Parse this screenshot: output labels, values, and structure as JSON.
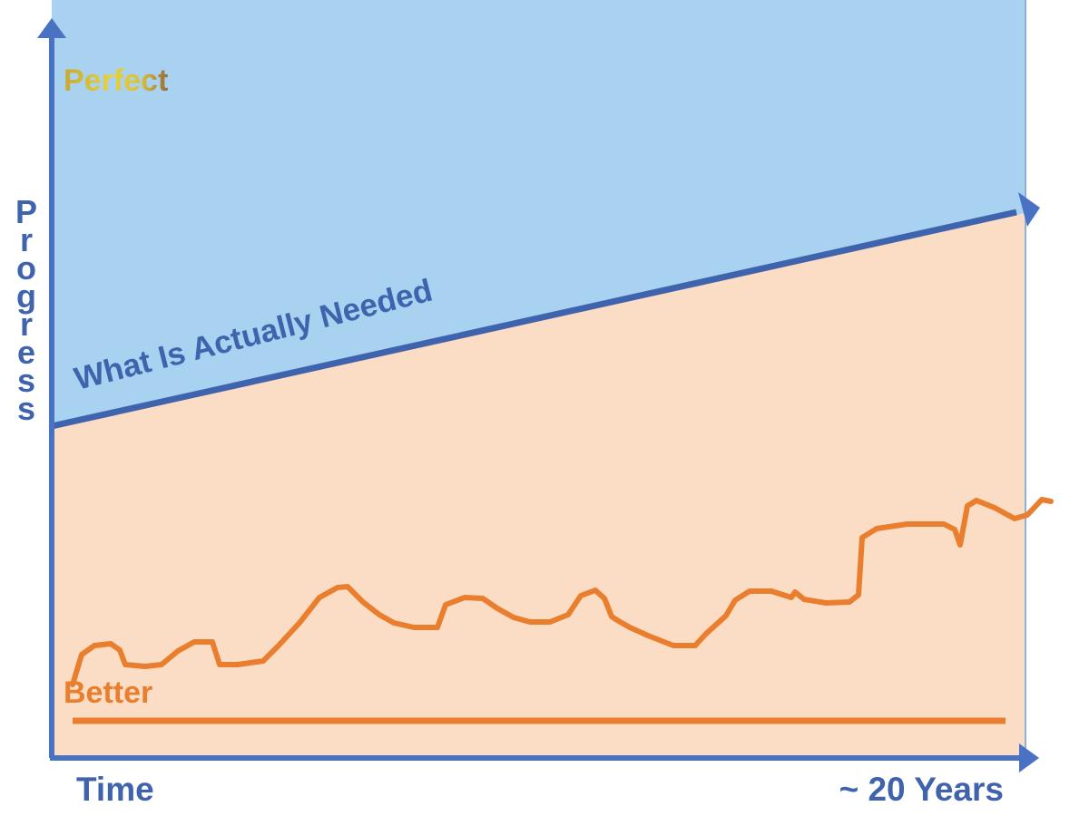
{
  "diagram": {
    "y_axis_title": "Progress",
    "x_axis_start_label": "Time",
    "x_axis_end_label": "~ 20 Years",
    "upper_region_label": "Perfect",
    "boundary_line_label": "What Is Actually Needed",
    "lower_region_label": "Better"
  },
  "colors": {
    "upper_region": "#a8d2f0",
    "lower_region": "#fbdcc4",
    "axis": "#4a72c4",
    "boundary_line": "#3f63ad",
    "progress_curve": "#e97f2e",
    "baseline": "#e97f2e",
    "axis_text": "#3f63ad"
  },
  "icons": {
    "y_axis_arrow": "arrow-up-icon",
    "x_axis_arrow": "arrow-right-icon",
    "boundary_arrow": "arrow-right-icon"
  }
}
